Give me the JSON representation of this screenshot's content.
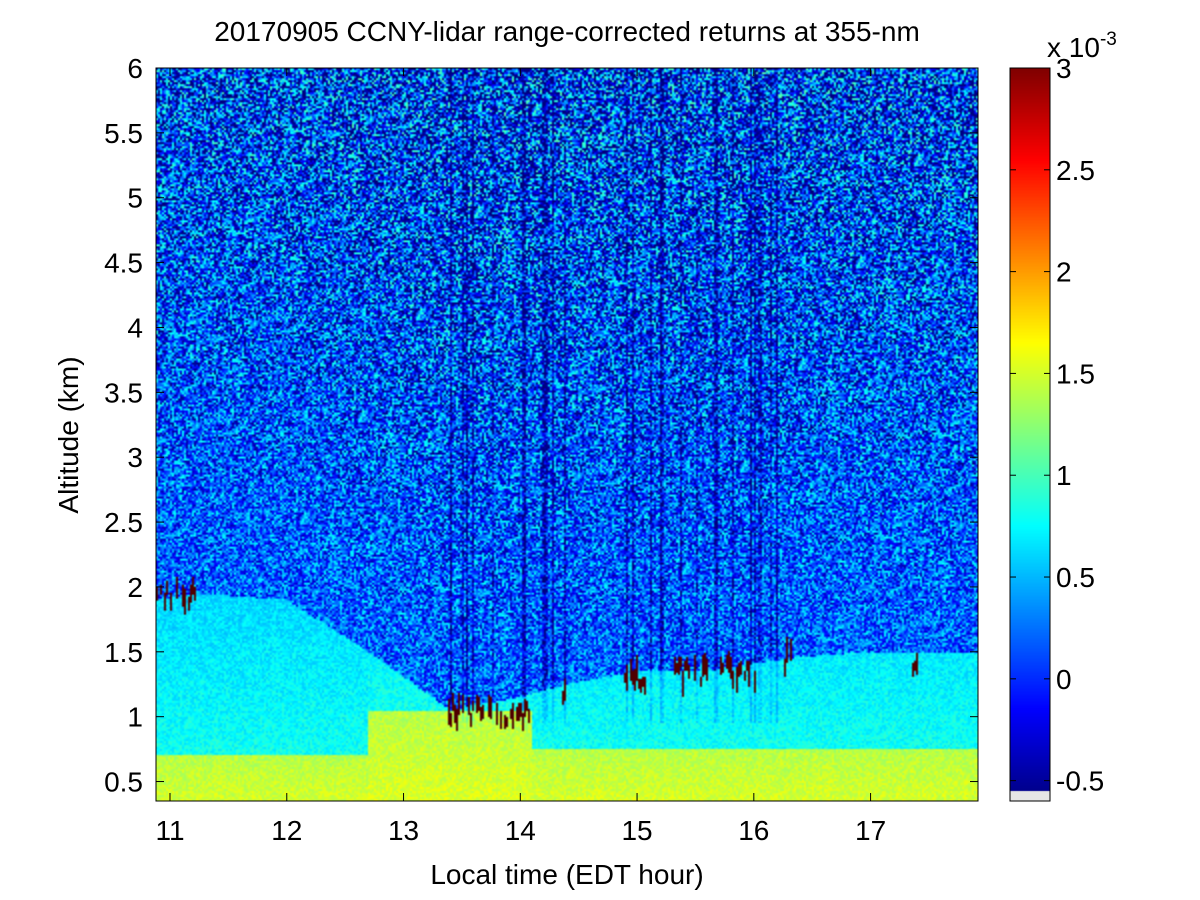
{
  "chart_data": {
    "type": "heatmap",
    "title": "20170905 CCNY-lidar range-corrected returns at 355-nm",
    "xlabel": "Local time (EDT hour)",
    "ylabel": "Altitude (km)",
    "xlim": [
      10.88,
      17.92
    ],
    "ylim": [
      0.35,
      6.0
    ],
    "x_ticks": [
      11,
      12,
      13,
      14,
      15,
      16,
      17
    ],
    "x_tick_labels": [
      "11",
      "12",
      "13",
      "14",
      "15",
      "16",
      "17"
    ],
    "y_ticks": [
      0.5,
      1,
      1.5,
      2,
      2.5,
      3,
      3.5,
      4,
      4.5,
      5,
      5.5,
      6
    ],
    "y_tick_labels": [
      "0.5",
      "1",
      "1.5",
      "2",
      "2.5",
      "3",
      "3.5",
      "4",
      "4.5",
      "5",
      "5.5",
      "6"
    ],
    "colorbar": {
      "colormap": "jet",
      "range": [
        -0.6,
        3.0
      ],
      "ticks": [
        -0.5,
        0,
        0.5,
        1,
        1.5,
        2,
        2.5,
        3
      ],
      "tick_labels": [
        "-0.5",
        "0",
        "0.5",
        "1",
        "1.5",
        "2",
        "2.5",
        "3"
      ],
      "multiplier_base": "x 10",
      "multiplier_exp": "-3"
    },
    "features": {
      "boundary_layer_top_km": [
        {
          "time": 10.9,
          "alt": 1.9
        },
        {
          "time": 11.2,
          "alt": 1.95
        },
        {
          "time": 12.0,
          "alt": 1.9
        },
        {
          "time": 12.7,
          "alt": 1.5
        },
        {
          "time": 13.4,
          "alt": 1.05
        },
        {
          "time": 14.0,
          "alt": 1.15
        },
        {
          "time": 14.4,
          "alt": 1.25
        },
        {
          "time": 15.0,
          "alt": 1.35
        },
        {
          "time": 15.6,
          "alt": 1.35
        },
        {
          "time": 16.3,
          "alt": 1.45
        },
        {
          "time": 17.0,
          "alt": 1.5
        },
        {
          "time": 17.9,
          "alt": 1.5
        }
      ],
      "cloud_returns": [
        {
          "t0": 10.88,
          "t1": 11.22,
          "alt": 1.95,
          "value": 3.0
        },
        {
          "t0": 13.37,
          "t1": 14.05,
          "alt": 1.05,
          "value": 3.0
        },
        {
          "t0": 14.35,
          "t1": 14.4,
          "alt": 1.2,
          "value": 3.0
        },
        {
          "t0": 14.9,
          "t1": 15.05,
          "alt": 1.3,
          "value": 3.0
        },
        {
          "t0": 15.3,
          "t1": 15.6,
          "alt": 1.35,
          "value": 3.0
        },
        {
          "t0": 15.7,
          "t1": 16.05,
          "alt": 1.35,
          "value": 3.0
        },
        {
          "t0": 16.27,
          "t1": 16.3,
          "alt": 1.45,
          "value": 3.0
        },
        {
          "t0": 17.35,
          "t1": 17.38,
          "alt": 1.45,
          "value": 3.0
        }
      ],
      "surface_layer_value": 1.6,
      "mixed_layer_value": 0.8,
      "free_troposphere_value": 0.2
    }
  }
}
